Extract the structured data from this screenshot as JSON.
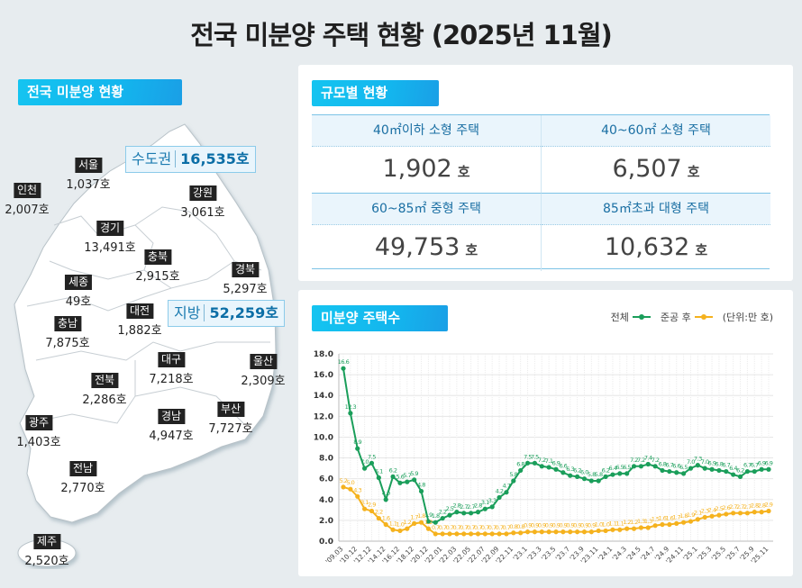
{
  "title": "전국 미분양 주택 현황 (2025년 11월)",
  "national": {
    "label": "전국 미분양 현황",
    "capital_area": {
      "label": "수도권",
      "value": "16,535호"
    },
    "provinces": {
      "label": "지방",
      "value": "52,259호"
    },
    "regions": [
      {
        "name": "서울",
        "value": "1,037호"
      },
      {
        "name": "인천",
        "value": "2,007호"
      },
      {
        "name": "강원",
        "value": "3,061호"
      },
      {
        "name": "경기",
        "value": "13,491호"
      },
      {
        "name": "충북",
        "value": "2,915호"
      },
      {
        "name": "경북",
        "value": "5,297호"
      },
      {
        "name": "세종",
        "value": "49호"
      },
      {
        "name": "대전",
        "value": "1,882호"
      },
      {
        "name": "충남",
        "value": "7,875호"
      },
      {
        "name": "대구",
        "value": "7,218호"
      },
      {
        "name": "울산",
        "value": "2,309호"
      },
      {
        "name": "전북",
        "value": "2,286호"
      },
      {
        "name": "광주",
        "value": "1,403호"
      },
      {
        "name": "경남",
        "value": "4,947호"
      },
      {
        "name": "부산",
        "value": "7,727호"
      },
      {
        "name": "전남",
        "value": "2,770호"
      },
      {
        "name": "제주",
        "value": "2,520호"
      }
    ]
  },
  "by_size": {
    "label": "규모별 현황",
    "unit": "호",
    "items": [
      {
        "label": "40㎡이하 소형 주택",
        "value": "1,902"
      },
      {
        "label": "40~60㎡ 소형 주택",
        "value": "6,507"
      },
      {
        "label": "60~85㎡ 중형 주택",
        "value": "49,753"
      },
      {
        "label": "85㎡초과 대형 주택",
        "value": "10,632"
      }
    ]
  },
  "colors": {
    "total": "#1a9e5a",
    "post_completion": "#f5b21e",
    "accent": "#15b8ee"
  },
  "chart_data": {
    "type": "line",
    "title": "미분양 주택수",
    "unit_note": "(단위:만 호)",
    "ylim": [
      0,
      18
    ],
    "yticks": [
      "0.0",
      "2.0",
      "4.0",
      "6.0",
      "8.0",
      "10.0",
      "12.0",
      "14.0",
      "16.0",
      "18.0"
    ],
    "grid": true,
    "legend": "top-right",
    "x": [
      "'09.03",
      "'09.12",
      "'10.12",
      "'11.12",
      "'12.12",
      "'13.12",
      "'14.12",
      "'15.12",
      "'16.12",
      "'17.12",
      "'18.12",
      "'19.12",
      "'20.12",
      "'21.12",
      "'22.01",
      "'22.02",
      "'22.03",
      "'22.04",
      "'22.05",
      "'22.06",
      "'22.07",
      "'22.08",
      "'22.09",
      "'22.10",
      "'22.11",
      "'22.12",
      "'23.1",
      "'23.2",
      "'23.3",
      "'23.4",
      "'23.5",
      "'23.6",
      "'23.7",
      "'23.8",
      "'23.9",
      "'23.10",
      "'23.11",
      "'23.12",
      "'24.1",
      "'24.2",
      "'24.3",
      "'24.4",
      "'24.5",
      "'24.6",
      "'24.7",
      "'24.8",
      "'24.9",
      "'24.10",
      "'24.11",
      "'24.12",
      "'25.1",
      "'25.2",
      "'25.3",
      "'25.4",
      "'25.5",
      "'25.6",
      "'25.7",
      "'25.8",
      "'25.9",
      "'25.10",
      "'25.11"
    ],
    "xtick_labels": [
      "'09.03",
      "'10.12",
      "'12.12",
      "'14.12",
      "'16.12",
      "'18.12",
      "'20.12",
      "'22.01",
      "'22.03",
      "'22.05",
      "'22.07",
      "'22.09",
      "'22.11",
      "'23.1",
      "'23.3",
      "'23.5",
      "'23.7",
      "'23.9",
      "'23.11",
      "'24.1",
      "'24.3",
      "'24.5",
      "'24.7",
      "'24.9",
      "'24.11",
      "'25.1",
      "'25.3",
      "'25.5",
      "'25.7",
      "'25.9",
      "'25.11"
    ],
    "series": [
      {
        "name": "전체",
        "values": [
          16.6,
          12.3,
          8.9,
          7.0,
          7.5,
          6.1,
          4.0,
          6.2,
          5.6,
          5.7,
          5.9,
          4.8,
          1.9,
          1.8,
          2.2,
          2.5,
          2.8,
          2.7,
          2.7,
          2.8,
          3.1,
          3.3,
          4.2,
          4.7,
          5.8,
          6.8,
          7.5,
          7.5,
          7.2,
          7.1,
          6.9,
          6.6,
          6.3,
          6.2,
          6.0,
          5.8,
          5.8,
          6.2,
          6.4,
          6.5,
          6.5,
          7.2,
          7.2,
          7.4,
          7.2,
          6.8,
          6.7,
          6.6,
          6.5,
          7.0,
          7.3,
          7.0,
          6.9,
          6.8,
          6.7,
          6.4,
          6.2,
          6.7,
          6.7,
          6.9,
          6.9
        ]
      },
      {
        "name": "준공 후",
        "values": [
          5.2,
          5.0,
          4.3,
          3.1,
          2.9,
          2.2,
          1.6,
          1.1,
          1.0,
          1.2,
          1.7,
          1.8,
          1.2,
          0.7,
          0.7,
          0.7,
          0.7,
          0.7,
          0.7,
          0.7,
          0.7,
          0.7,
          0.7,
          0.7,
          0.8,
          0.8,
          0.9,
          0.9,
          0.9,
          0.9,
          0.9,
          0.9,
          0.9,
          0.9,
          0.9,
          0.9,
          1.0,
          1.0,
          1.1,
          1.1,
          1.2,
          1.2,
          1.3,
          1.3,
          1.5,
          1.6,
          1.6,
          1.7,
          1.8,
          1.9,
          2.1,
          2.3,
          2.4,
          2.5,
          2.6,
          2.7,
          2.7,
          2.7,
          2.8,
          2.8,
          2.9
        ]
      }
    ]
  }
}
